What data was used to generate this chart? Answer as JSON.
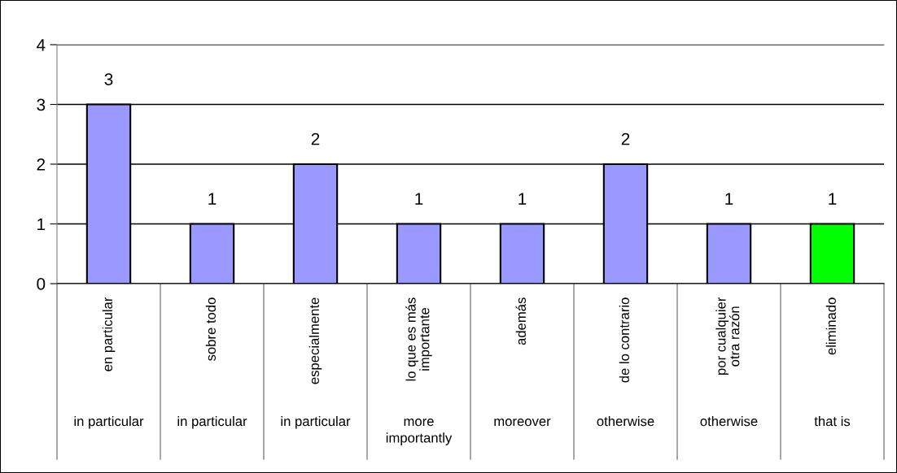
{
  "chart_data": {
    "type": "bar",
    "categories": [
      "en particular",
      "sobre todo",
      "especialmente",
      "lo que es más\nimportante",
      "además",
      "de lo contrario",
      "por cualquier\notra razón",
      "eliminado"
    ],
    "values": [
      3,
      1,
      2,
      1,
      1,
      2,
      1,
      1
    ],
    "colors": [
      "#9999ff",
      "#9999ff",
      "#9999ff",
      "#9999ff",
      "#9999ff",
      "#9999ff",
      "#9999ff",
      "#00ff00"
    ],
    "annotations": [
      "in particular",
      "in particular",
      "in particular",
      "more\nimportantly",
      "moreover",
      "otherwise",
      "otherwise",
      "that is"
    ],
    "ylim": [
      0,
      4
    ],
    "yticks": [
      0,
      1,
      2,
      3,
      4
    ],
    "data_labels": true,
    "grid": "y",
    "legend": false
  }
}
